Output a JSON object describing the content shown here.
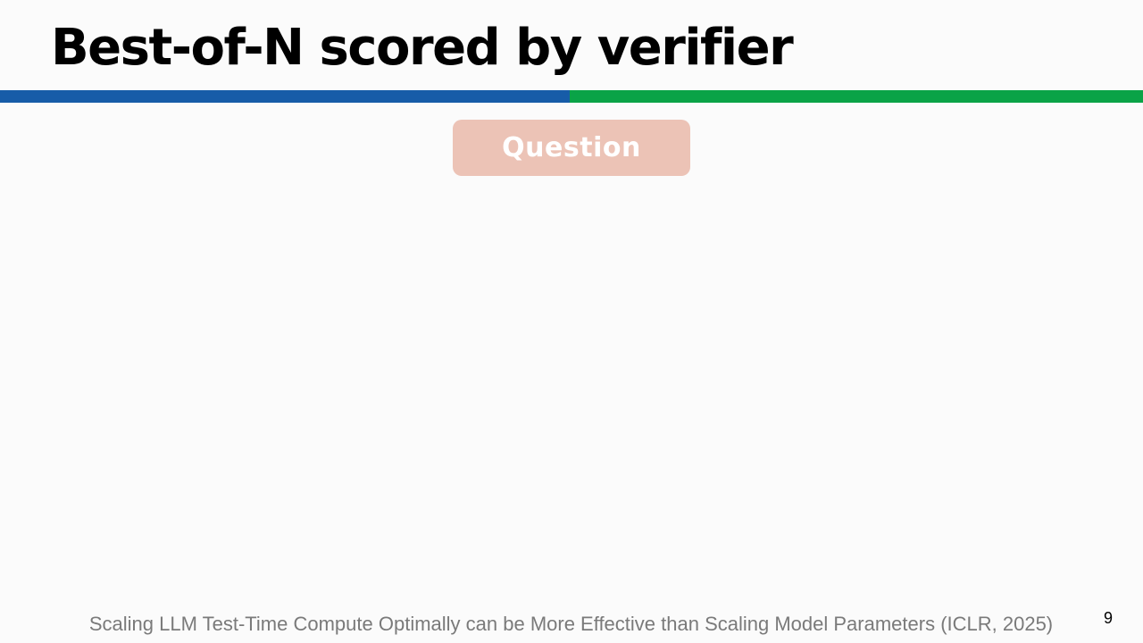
{
  "slide": {
    "title": "Best-of-N scored by verifier",
    "question_label": "Question",
    "citation": "Scaling LLM Test-Time Compute Optimally can be More Effective than Scaling Model Parameters (ICLR, 2025)",
    "page_number": "9"
  },
  "colors": {
    "background": "#fbfbfb",
    "divider_left": "#175ca8",
    "divider_right": "#0aa347",
    "question_fill": "#ecc3b6",
    "citation_text": "#7a7a7a"
  }
}
